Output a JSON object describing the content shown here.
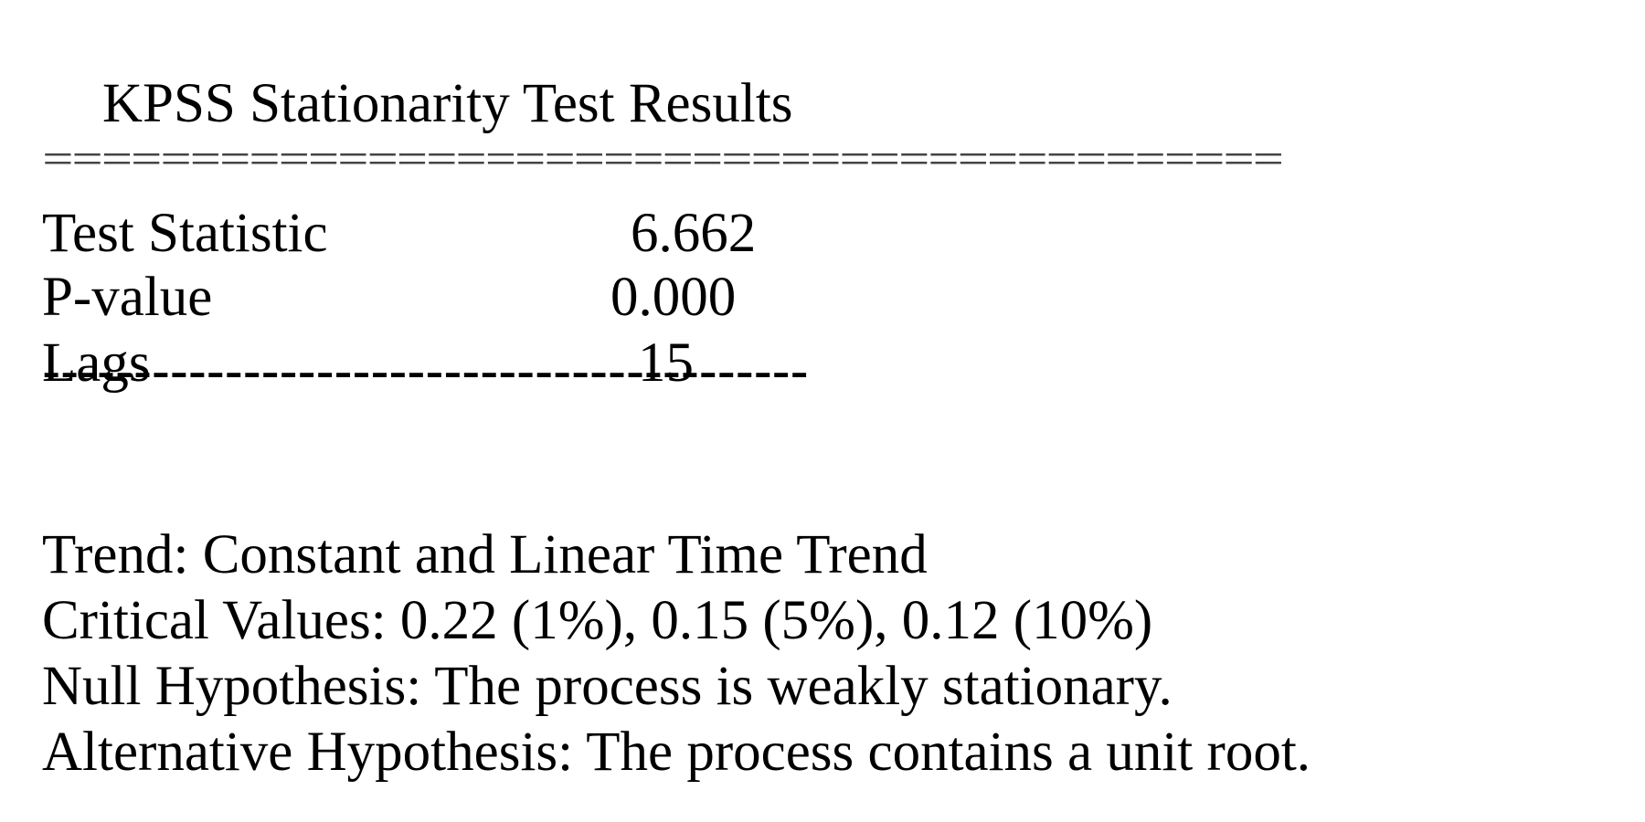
{
  "report": {
    "title": "KPSS Stationarity Test Results",
    "double_rule": "==========================================",
    "single_rule": "------------------------------------------",
    "rows": [
      {
        "label": "Test Statistic",
        "value": "6.662"
      },
      {
        "label": "P-value",
        "value": "0.000"
      },
      {
        "label": "Lags",
        "value": "15"
      }
    ],
    "trend": "Trend: Constant and Linear Time Trend",
    "critical_values": "Critical Values: 0.22 (1%), 0.15 (5%), 0.12 (10%)",
    "null_hypothesis": "Null Hypothesis: The process is weakly stationary.",
    "alternative_hypothesis": "Alternative Hypothesis: The process contains a unit root."
  }
}
